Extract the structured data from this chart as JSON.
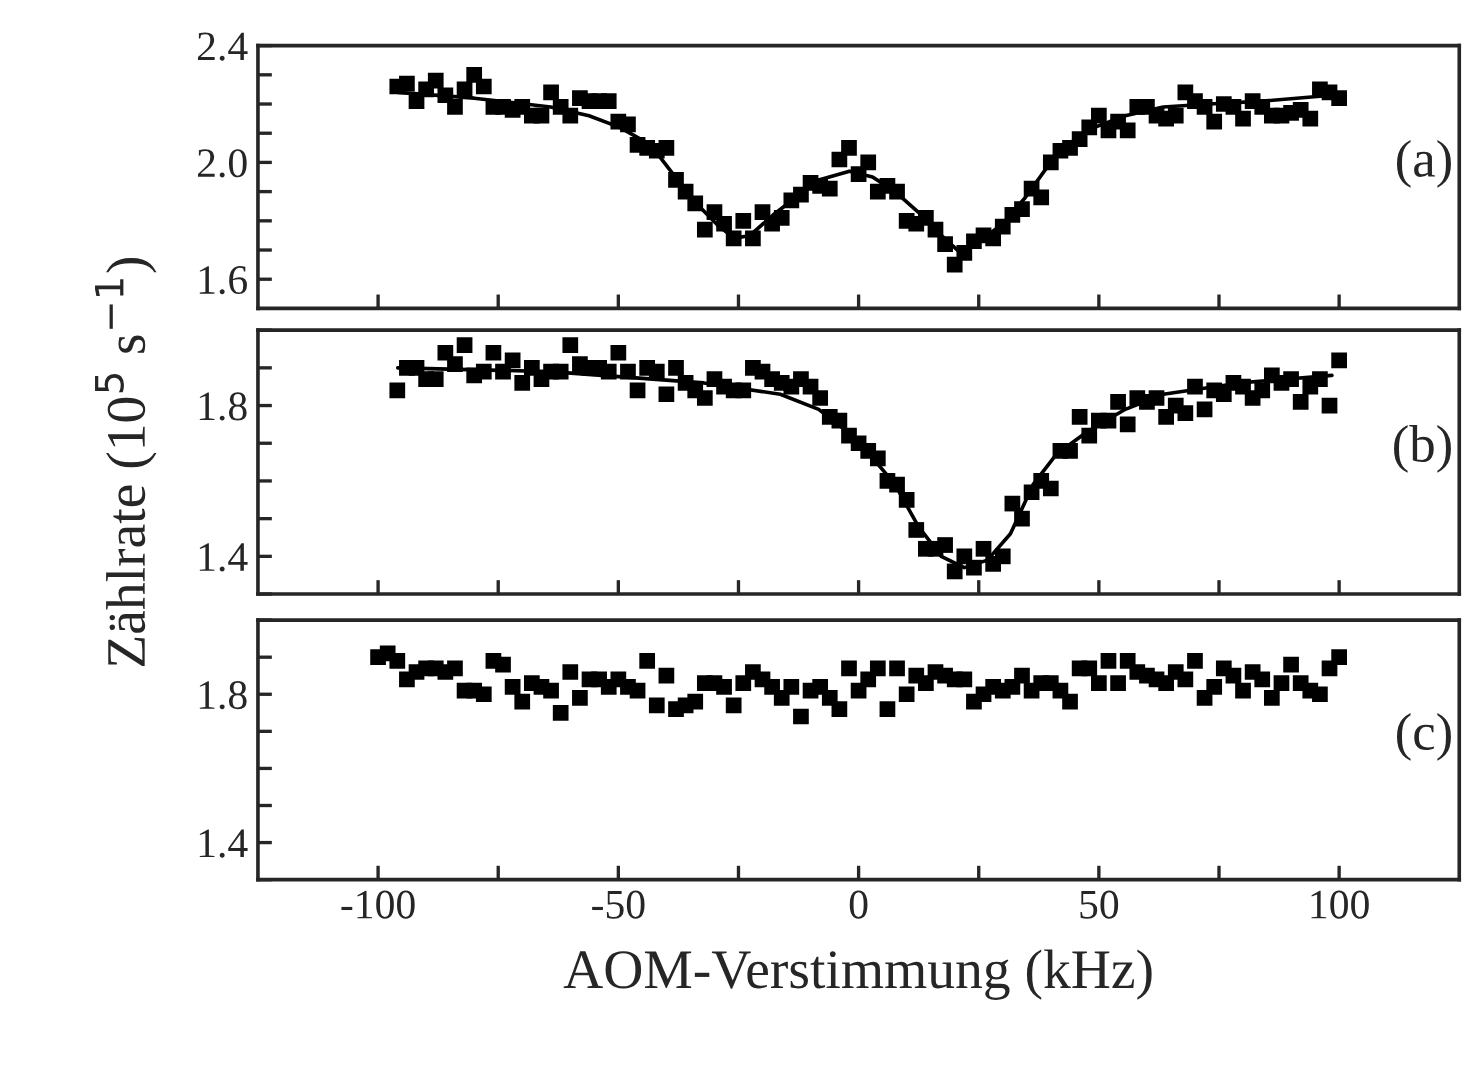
{
  "chart_data": [
    {
      "type": "scatter",
      "tick_labels": "y",
      "annotations": [
        "(a)"
      ],
      "xlim": [
        -125,
        125
      ],
      "xticks": [
        {
          "value": -100,
          "label": null
        },
        {
          "value": -75,
          "label": null
        },
        {
          "value": -50,
          "label": null
        },
        {
          "value": -25,
          "label": null
        },
        {
          "value": 0,
          "label": null
        },
        {
          "value": 25,
          "label": null
        },
        {
          "value": 50,
          "label": null
        },
        {
          "value": 75,
          "label": null
        },
        {
          "value": 100,
          "label": null
        }
      ],
      "ylim": [
        1.5,
        2.4
      ],
      "yticks": [
        {
          "value": 1.6,
          "label": "1.6"
        },
        {
          "value": 1.7,
          "label": null
        },
        {
          "value": 1.8,
          "label": null
        },
        {
          "value": 1.9,
          "label": null
        },
        {
          "value": 2.0,
          "label": "2.0"
        },
        {
          "value": 2.1,
          "label": null
        },
        {
          "value": 2.2,
          "label": null
        },
        {
          "value": 2.3,
          "label": null
        },
        {
          "value": 2.4,
          "label": "2.4"
        }
      ],
      "series": [
        {
          "marker": "square",
          "color": "#000000",
          "x": [
            -96,
            -94,
            -92,
            -90,
            -88,
            -86,
            -84,
            -82,
            -80,
            -78,
            -76,
            -74,
            -72,
            -70,
            -68,
            -66,
            -64,
            -62,
            -60,
            -58,
            -56,
            -54,
            -52,
            -50,
            -48,
            -46,
            -44,
            -42,
            -40,
            -38,
            -36,
            -34,
            -32,
            -30,
            -28,
            -26,
            -24,
            -22,
            -20,
            -18,
            -16,
            -14,
            -12,
            -10,
            -8,
            -6,
            -4,
            -2,
            0,
            2,
            4,
            6,
            8,
            10,
            12,
            14,
            16,
            18,
            20,
            22,
            24,
            26,
            28,
            30,
            32,
            34,
            36,
            38,
            40,
            42,
            44,
            46,
            48,
            50,
            52,
            54,
            56,
            58,
            60,
            62,
            64,
            66,
            68,
            70,
            72,
            74,
            76,
            78,
            80,
            82,
            84,
            86,
            88,
            90,
            92,
            94,
            96,
            98,
            100
          ],
          "values": [
            2.26,
            2.27,
            2.21,
            2.25,
            2.28,
            2.23,
            2.19,
            2.25,
            2.3,
            2.26,
            2.19,
            2.19,
            2.18,
            2.19,
            2.16,
            2.16,
            2.24,
            2.19,
            2.16,
            2.22,
            2.21,
            2.21,
            2.21,
            2.14,
            2.13,
            2.06,
            2.05,
            2.04,
            2.05,
            1.94,
            1.9,
            1.86,
            1.77,
            1.83,
            1.79,
            1.74,
            1.8,
            1.74,
            1.83,
            1.79,
            1.81,
            1.87,
            1.89,
            1.93,
            1.92,
            1.91,
            2.01,
            2.05,
            1.96,
            2.0,
            1.9,
            1.92,
            1.9,
            1.8,
            1.79,
            1.81,
            1.77,
            1.72,
            1.65,
            1.69,
            1.73,
            1.75,
            1.74,
            1.78,
            1.82,
            1.84,
            1.91,
            1.88,
            2.0,
            2.04,
            2.05,
            2.08,
            2.12,
            2.16,
            2.11,
            2.14,
            2.11,
            2.19,
            2.19,
            2.16,
            2.15,
            2.16,
            2.24,
            2.21,
            2.19,
            2.14,
            2.2,
            2.19,
            2.15,
            2.21,
            2.19,
            2.16,
            2.16,
            2.17,
            2.18,
            2.15,
            2.25,
            2.24,
            2.22
          ]
        },
        {
          "type": "line",
          "color": "#000000",
          "x": [
            -95.9,
            -80,
            -64.1,
            -56.1,
            -49.7,
            -43.3,
            -38.6,
            -33.8,
            -29.0,
            -25.8,
            -22.6,
            -17.8,
            -13.1,
            -8.3,
            -1.9,
            2.9,
            7.6,
            12.4,
            17.2,
            21.2,
            25.2,
            30.0,
            34.7,
            39.5,
            44.3,
            49.1,
            55.5,
            63.4,
            73.0,
            84.1,
            98.5
          ],
          "values": [
            2.24,
            2.22,
            2.19,
            2.16,
            2.12,
            2.06,
            1.96,
            1.86,
            1.78,
            1.74,
            1.75,
            1.82,
            1.88,
            1.94,
            1.97,
            1.95,
            1.9,
            1.83,
            1.75,
            1.69,
            1.73,
            1.79,
            1.88,
            1.99,
            2.07,
            2.12,
            2.16,
            2.19,
            2.2,
            2.21,
            2.23
          ]
        }
      ]
    },
    {
      "type": "scatter",
      "tick_labels": "y",
      "annotations": [
        "(b)"
      ],
      "ylabel": "Zählrate (10$^{5}$ s$^{−1}$)",
      "xlim": [
        -125,
        125
      ],
      "xticks": [
        {
          "value": -100,
          "label": null
        },
        {
          "value": -75,
          "label": null
        },
        {
          "value": -50,
          "label": null
        },
        {
          "value": -25,
          "label": null
        },
        {
          "value": 0,
          "label": null
        },
        {
          "value": 25,
          "label": null
        },
        {
          "value": 50,
          "label": null
        },
        {
          "value": 75,
          "label": null
        },
        {
          "value": 100,
          "label": null
        }
      ],
      "ylim": [
        1.3,
        2.0
      ],
      "yticks": [
        {
          "value": 1.3,
          "label": null
        },
        {
          "value": 1.4,
          "label": "1.4"
        },
        {
          "value": 1.5,
          "label": null
        },
        {
          "value": 1.6,
          "label": null
        },
        {
          "value": 1.7,
          "label": null
        },
        {
          "value": 1.8,
          "label": "1.8"
        },
        {
          "value": 1.9,
          "label": null
        },
        {
          "value": 2.0,
          "label": null
        }
      ],
      "series": [
        {
          "marker": "square",
          "color": "#000000",
          "x": [
            -96,
            -94,
            -92,
            -90,
            -88,
            -86,
            -84,
            -82,
            -80,
            -78,
            -76,
            -74,
            -72,
            -70,
            -68,
            -66,
            -64,
            -62,
            -60,
            -58,
            -56,
            -54,
            -52,
            -50,
            -48,
            -46,
            -44,
            -42,
            -40,
            -38,
            -36,
            -34,
            -32,
            -30,
            -28,
            -26,
            -24,
            -22,
            -20,
            -18,
            -16,
            -14,
            -12,
            -10,
            -8,
            -6,
            -4,
            -2,
            0,
            2,
            4,
            6,
            8,
            10,
            12,
            14,
            16,
            18,
            20,
            22,
            24,
            26,
            28,
            30,
            32,
            34,
            36,
            38,
            40,
            42,
            44,
            46,
            48,
            50,
            52,
            54,
            56,
            58,
            60,
            62,
            64,
            66,
            68,
            70,
            72,
            74,
            76,
            78,
            80,
            82,
            84,
            86,
            88,
            90,
            92,
            94,
            96,
            98,
            100
          ],
          "values": [
            1.84,
            1.9,
            1.9,
            1.87,
            1.87,
            1.94,
            1.91,
            1.96,
            1.88,
            1.89,
            1.94,
            1.89,
            1.92,
            1.86,
            1.9,
            1.87,
            1.89,
            1.89,
            1.96,
            1.91,
            1.9,
            1.9,
            1.89,
            1.94,
            1.89,
            1.84,
            1.9,
            1.89,
            1.83,
            1.9,
            1.86,
            1.84,
            1.82,
            1.87,
            1.85,
            1.84,
            1.84,
            1.9,
            1.89,
            1.87,
            1.86,
            1.85,
            1.87,
            1.85,
            1.82,
            1.77,
            1.76,
            1.72,
            1.7,
            1.68,
            1.66,
            1.6,
            1.59,
            1.55,
            1.47,
            1.42,
            1.42,
            1.43,
            1.36,
            1.4,
            1.37,
            1.42,
            1.38,
            1.4,
            1.54,
            1.5,
            1.57,
            1.6,
            1.58,
            1.68,
            1.68,
            1.77,
            1.72,
            1.76,
            1.76,
            1.81,
            1.75,
            1.82,
            1.81,
            1.82,
            1.77,
            1.8,
            1.78,
            1.85,
            1.79,
            1.84,
            1.83,
            1.86,
            1.85,
            1.82,
            1.84,
            1.88,
            1.86,
            1.87,
            1.81,
            1.85,
            1.87,
            1.8,
            1.92
          ]
        },
        {
          "type": "line",
          "color": "#000000",
          "x": [
            -95.9,
            -64.1,
            -32.2,
            -16.3,
            -8.3,
            -0.3,
            7.6,
            12.4,
            17.2,
            22.0,
            26.8,
            31.6,
            36.3,
            41.1,
            47.5,
            55.5,
            63.4,
            79.4,
            98.5
          ],
          "values": [
            1.9,
            1.89,
            1.86,
            1.83,
            1.79,
            1.71,
            1.59,
            1.48,
            1.4,
            1.37,
            1.39,
            1.46,
            1.59,
            1.67,
            1.73,
            1.79,
            1.83,
            1.86,
            1.88
          ]
        }
      ]
    },
    {
      "type": "scatter",
      "annotations": [
        "(c)"
      ],
      "xlabel": "AOM-Verstimmung (kHz)",
      "xlim": [
        -125,
        125
      ],
      "xticks": [
        -100,
        {
          "value": -75,
          "label": null
        },
        -50,
        {
          "value": -25,
          "label": null
        },
        0,
        {
          "value": 25,
          "label": null
        },
        50,
        {
          "value": 75,
          "label": null
        },
        100
      ],
      "ylim": [
        1.3,
        2.0
      ],
      "yticks": [
        {
          "value": 1.3,
          "label": null
        },
        {
          "value": 1.4,
          "label": "1.4"
        },
        {
          "value": 1.5,
          "label": null
        },
        {
          "value": 1.6,
          "label": null
        },
        {
          "value": 1.7,
          "label": null
        },
        {
          "value": 1.8,
          "label": "1.8"
        },
        {
          "value": 1.9,
          "label": null
        },
        {
          "value": 2.0,
          "label": null
        }
      ],
      "series": [
        {
          "marker": "square",
          "color": "#000000",
          "x": [
            -100,
            -98,
            -96,
            -94,
            -92,
            -90,
            -88,
            -86,
            -84,
            -82,
            -80,
            -78,
            -76,
            -74,
            -72,
            -70,
            -68,
            -66,
            -64,
            -62,
            -60,
            -58,
            -56,
            -54,
            -52,
            -50,
            -48,
            -46,
            -44,
            -42,
            -40,
            -38,
            -36,
            -34,
            -32,
            -30,
            -28,
            -26,
            -24,
            -22,
            -20,
            -18,
            -16,
            -14,
            -12,
            -10,
            -8,
            -6,
            -4,
            -2,
            0,
            2,
            4,
            6,
            8,
            10,
            12,
            14,
            16,
            18,
            20,
            22,
            24,
            26,
            28,
            30,
            32,
            34,
            36,
            38,
            40,
            42,
            44,
            46,
            48,
            50,
            52,
            54,
            56,
            58,
            60,
            62,
            64,
            66,
            68,
            70,
            72,
            74,
            76,
            78,
            80,
            82,
            84,
            86,
            88,
            90,
            92,
            94,
            96,
            98,
            100
          ],
          "values": [
            1.9,
            1.91,
            1.89,
            1.84,
            1.86,
            1.87,
            1.87,
            1.86,
            1.87,
            1.81,
            1.81,
            1.8,
            1.89,
            1.88,
            1.82,
            1.78,
            1.83,
            1.82,
            1.81,
            1.75,
            1.86,
            1.79,
            1.84,
            1.84,
            1.82,
            1.84,
            1.82,
            1.81,
            1.89,
            1.77,
            1.85,
            1.76,
            1.77,
            1.78,
            1.83,
            1.83,
            1.82,
            1.77,
            1.83,
            1.86,
            1.84,
            1.82,
            1.79,
            1.82,
            1.74,
            1.81,
            1.82,
            1.79,
            1.76,
            1.87,
            1.81,
            1.84,
            1.87,
            1.76,
            1.87,
            1.8,
            1.85,
            1.83,
            1.86,
            1.85,
            1.84,
            1.84,
            1.78,
            1.8,
            1.82,
            1.81,
            1.82,
            1.85,
            1.81,
            1.83,
            1.83,
            1.81,
            1.78,
            1.87,
            1.87,
            1.83,
            1.89,
            1.83,
            1.89,
            1.86,
            1.85,
            1.84,
            1.83,
            1.86,
            1.84,
            1.89,
            1.79,
            1.82,
            1.87,
            1.85,
            1.81,
            1.86,
            1.84,
            1.79,
            1.83,
            1.88,
            1.83,
            1.81,
            1.8,
            1.87,
            1.9
          ]
        }
      ]
    }
  ]
}
